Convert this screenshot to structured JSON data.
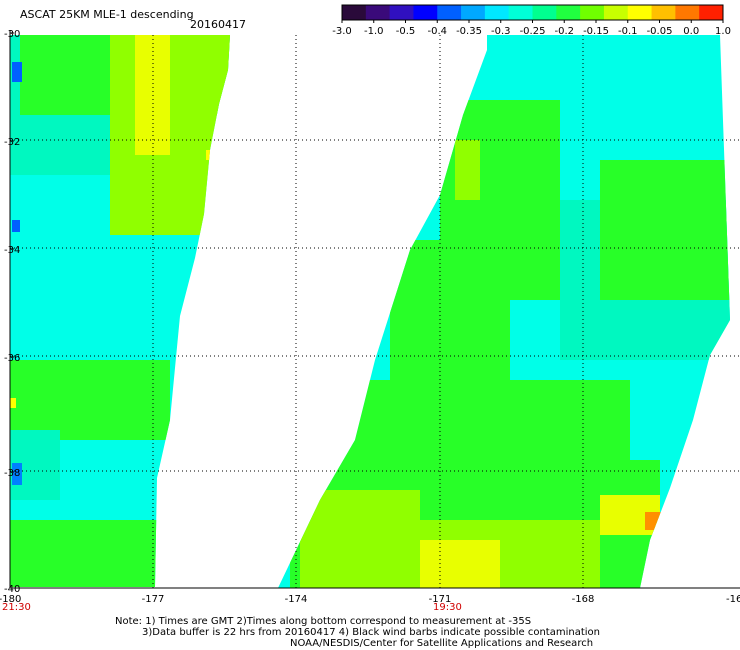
{
  "header": {
    "title": "ASCAT 25KM MLE-1 descending",
    "date": "20160417"
  },
  "colorbar": {
    "colors": [
      "#2a0a3a",
      "#3a0a7a",
      "#3010c0",
      "#0000ff",
      "#0060ff",
      "#00a8ff",
      "#00e8ff",
      "#00ffd8",
      "#00ff90",
      "#20ff40",
      "#70ff00",
      "#c8ff00",
      "#ffff00",
      "#ffc000",
      "#ff7800",
      "#ff2000"
    ],
    "tick_labels": [
      "-3.0",
      "-1.0",
      "-0.5",
      "-0.4",
      "-0.35",
      "-0.3",
      "-0.25",
      "-0.2",
      "-0.15",
      "-0.1",
      "-0.05",
      "0.0",
      "1.0"
    ]
  },
  "map": {
    "lon_labels": [
      "-180",
      "-177",
      "-174",
      "-171",
      "-168",
      "-16"
    ],
    "lat_labels": [
      "-30",
      "-32",
      "-34",
      "-36",
      "-38",
      "-40"
    ],
    "time_labels": [
      {
        "text": "21:30",
        "color": "#d00000"
      },
      {
        "text": "19:30",
        "color": "#d00000"
      }
    ],
    "swath_colors": {
      "cyan": "#00ffe8",
      "aqua": "#00f8c0",
      "green": "#28ff28",
      "lime": "#90ff00",
      "yellow": "#e8ff00",
      "orange": "#ff9000"
    }
  },
  "notes": [
    "Note: 1) Times are GMT 2)Times along bottom correspond to measurement at -35S",
    "3)Data buffer is 22 hrs from 20160417 4) Black wind barbs indicate possible contamination",
    "NOAA/NESDIS/Center for Satellite Applications and Research"
  ]
}
